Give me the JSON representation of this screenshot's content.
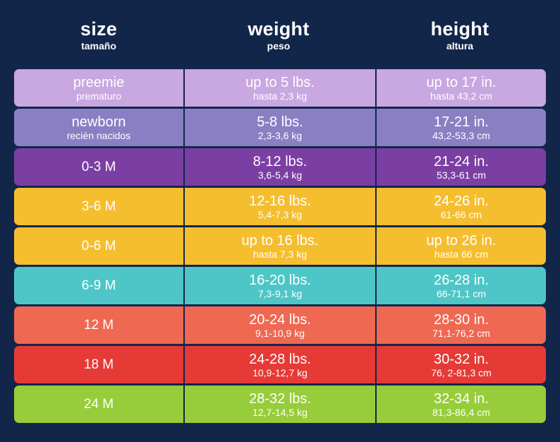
{
  "header": {
    "size": {
      "title": "size",
      "subtitle": "tamaño"
    },
    "weight": {
      "title": "weight",
      "subtitle": "peso"
    },
    "height": {
      "title": "height",
      "subtitle": "altura"
    }
  },
  "colors": {
    "background": "#12264a",
    "preemie": "#c9a7e0",
    "newborn": "#8b7fc4",
    "purple": "#7b3fa3",
    "yellow": "#f5be2f",
    "teal": "#4ec6c7",
    "coral": "#ef6852",
    "red": "#e53a35",
    "green": "#97cd3a"
  },
  "rows": [
    {
      "size_main": "preemie",
      "size_sub": "prematuro",
      "weight_main": "up to 5 lbs.",
      "weight_sub": "hasta 2,3 kg",
      "height_main": "up to 17 in.",
      "height_sub": "hasta 43,2 cm",
      "color": "#c9a7e0"
    },
    {
      "size_main": "newborn",
      "size_sub": "recién nacidos",
      "weight_main": "5-8 lbs.",
      "weight_sub": "2,3-3,6 kg",
      "height_main": "17-21 in.",
      "height_sub": "43,2-53,3 cm",
      "color": "#8b7fc4"
    },
    {
      "size_main": "0-3 M",
      "size_sub": "",
      "weight_main": "8-12 lbs.",
      "weight_sub": "3,6-5,4 kg",
      "height_main": "21-24 in.",
      "height_sub": "53,3-61 cm",
      "color": "#7b3fa3"
    },
    {
      "size_main": "3-6 M",
      "size_sub": "",
      "weight_main": "12-16 lbs.",
      "weight_sub": "5,4-7,3 kg",
      "height_main": "24-26 in.",
      "height_sub": "61-66 cm",
      "color": "#f5be2f"
    },
    {
      "size_main": "0-6 M",
      "size_sub": "",
      "weight_main": "up to 16 lbs.",
      "weight_sub": "hasta 7,3 kg",
      "height_main": "up to 26 in.",
      "height_sub": "hasta 66 cm",
      "color": "#f5be2f"
    },
    {
      "size_main": "6-9 M",
      "size_sub": "",
      "weight_main": "16-20 lbs.",
      "weight_sub": "7,3-9,1 kg",
      "height_main": "26-28 in.",
      "height_sub": "66-71,1 cm",
      "color": "#4ec6c7"
    },
    {
      "size_main": "12 M",
      "size_sub": "",
      "weight_main": "20-24 lbs.",
      "weight_sub": "9,1-10,9 kg",
      "height_main": "28-30 in.",
      "height_sub": "71,1-76,2 cm",
      "color": "#ef6852"
    },
    {
      "size_main": "18 M",
      "size_sub": "",
      "weight_main": "24-28 lbs.",
      "weight_sub": "10,9-12,7 kg",
      "height_main": "30-32 in.",
      "height_sub": "76, 2-81,3 cm",
      "color": "#e53a35"
    },
    {
      "size_main": "24 M",
      "size_sub": "",
      "weight_main": "28-32 lbs.",
      "weight_sub": "12,7-14,5 kg",
      "height_main": "32-34 in.",
      "height_sub": "81,3-86,4 cm",
      "color": "#97cd3a"
    }
  ]
}
